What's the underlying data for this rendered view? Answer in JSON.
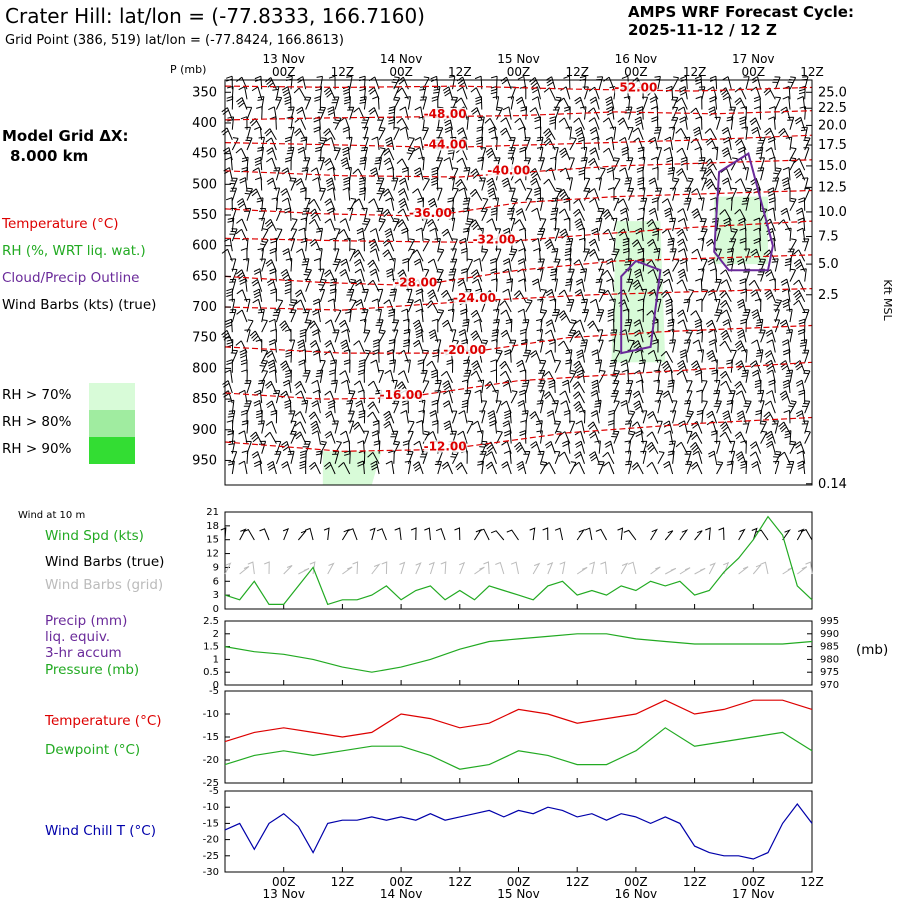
{
  "header": {
    "title": "Crater Hill:  lat/lon = (-77.8333, 166.7160)",
    "subtitle": "Grid Point (386, 519) lat/lon = (-77.8424, 166.8613)",
    "cycle_line1": "AMPS WRF Forecast Cycle:",
    "cycle_line2": "2025-11-12 / 12  Z"
  },
  "sidebar": {
    "model_grid_label": "Model Grid ΔX:",
    "model_grid_value": "8.000 km",
    "legend_temperature": "Temperature (°C)",
    "legend_rh": "RH (%, WRT liq. wat.)",
    "legend_cloud": "Cloud/Precip Outline",
    "legend_wind": "Wind Barbs (kts) (true)",
    "rh_levels": [
      {
        "label": "RH > 70%",
        "color": "#d8fbd8"
      },
      {
        "label": "RH > 80%",
        "color": "#a0eca0"
      },
      {
        "label": "RH > 90%",
        "color": "#33dd33"
      }
    ]
  },
  "colors": {
    "temperature": "#dd0000",
    "rh": "#22aa22",
    "cloud": "#6a2a9a",
    "wind": "#000000",
    "wind_grid": "#bbbbbb",
    "windchill": "#0000aa"
  },
  "time_axis": {
    "ticks": [
      "00Z",
      "12Z",
      "00Z",
      "12Z",
      "00Z",
      "12Z",
      "00Z",
      "12Z",
      "00Z",
      "12Z"
    ],
    "ticks_hours": [
      12,
      24,
      36,
      48,
      60,
      72,
      84,
      96,
      108,
      120
    ],
    "dates": [
      "13 Nov",
      "14 Nov",
      "15 Nov",
      "16 Nov",
      "17 Nov"
    ],
    "dates_hours": [
      12,
      36,
      60,
      84,
      108
    ],
    "xlim": [
      0,
      120
    ]
  },
  "chart_data": [
    {
      "type": "line",
      "name": "time-height cross-section",
      "ylabel": "P (mb)",
      "y2label": "Kft MSL",
      "ylim": [
        990,
        330
      ],
      "pressure_ticks": [
        350,
        400,
        450,
        500,
        550,
        600,
        650,
        700,
        750,
        800,
        850,
        900,
        950
      ],
      "height_ticks": [
        {
          "label": "25.0",
          "p": 350
        },
        {
          "label": "22.5",
          "p": 376
        },
        {
          "label": "20.0",
          "p": 404
        },
        {
          "label": "17.5",
          "p": 436
        },
        {
          "label": "15.0",
          "p": 470
        },
        {
          "label": "12.5",
          "p": 505
        },
        {
          "label": "10.0",
          "p": 545
        },
        {
          "label": "7.5",
          "p": 585
        },
        {
          "label": "5.0",
          "p": 630
        },
        {
          "label": "2.5",
          "p": 680
        },
        {
          "label": "0.14",
          "p": 988
        }
      ],
      "temperature_contours": [
        {
          "label": "-52.00",
          "label_hour": 84,
          "label_p": 347,
          "x": [
            0,
            24,
            48,
            72,
            96,
            120
          ],
          "y": [
            340,
            342,
            340,
            345,
            348,
            342
          ]
        },
        {
          "label": "-48.00",
          "label_hour": 45,
          "label_p": 390,
          "x": [
            0,
            20,
            40,
            60,
            80,
            100,
            120
          ],
          "y": [
            395,
            392,
            390,
            388,
            382,
            385,
            380
          ]
        },
        {
          "label": "-44.00",
          "label_hour": 45,
          "label_p": 440,
          "x": [
            0,
            24,
            45,
            70,
            96,
            120
          ],
          "y": [
            432,
            436,
            440,
            434,
            428,
            420
          ]
        },
        {
          "label": "-40.00",
          "label_hour": 58,
          "label_p": 482,
          "x": [
            0,
            24,
            48,
            58,
            80,
            100,
            120
          ],
          "y": [
            478,
            486,
            488,
            482,
            470,
            465,
            460
          ]
        },
        {
          "label": "-36.00",
          "label_hour": 42,
          "label_p": 552,
          "x": [
            0,
            20,
            42,
            60,
            80,
            100,
            120
          ],
          "y": [
            540,
            548,
            552,
            530,
            520,
            515,
            510
          ]
        },
        {
          "label": "-32.00",
          "label_hour": 55,
          "label_p": 595,
          "x": [
            0,
            24,
            55,
            75,
            96,
            120
          ],
          "y": [
            588,
            592,
            595,
            582,
            570,
            560
          ]
        },
        {
          "label": "-28.00",
          "label_hour": 39,
          "label_p": 665,
          "x": [
            0,
            20,
            39,
            60,
            80,
            100,
            120
          ],
          "y": [
            650,
            660,
            665,
            640,
            625,
            620,
            615
          ]
        },
        {
          "label": "-24.00",
          "label_hour": 51,
          "label_p": 690,
          "x": [
            0,
            24,
            51,
            75,
            96,
            120
          ],
          "y": [
            700,
            705,
            690,
            680,
            675,
            670
          ]
        },
        {
          "label": "-20.00",
          "label_hour": 49,
          "label_p": 775,
          "x": [
            0,
            24,
            49,
            70,
            90,
            120
          ],
          "y": [
            765,
            775,
            775,
            750,
            740,
            730
          ]
        },
        {
          "label": "-16.00",
          "label_hour": 36,
          "label_p": 848,
          "x": [
            0,
            20,
            36,
            60,
            80,
            100,
            120
          ],
          "y": [
            840,
            850,
            848,
            820,
            810,
            800,
            790
          ]
        },
        {
          "label": "-12.00",
          "label_hour": 45,
          "label_p": 932,
          "x": [
            0,
            24,
            45,
            70,
            96,
            120
          ],
          "y": [
            920,
            935,
            932,
            905,
            890,
            880
          ]
        }
      ],
      "rh_regions": [
        {
          "level": "RH > 70%",
          "x": [
            20,
            30,
            32,
            20
          ],
          "y": [
            990,
            990,
            935,
            935
          ]
        },
        {
          "level": "RH > 70%",
          "x": [
            79,
            90,
            89,
            80
          ],
          "y": [
            790,
            790,
            560,
            560
          ]
        },
        {
          "level": "RH > 70%",
          "x": [
            100,
            111,
            111,
            100
          ],
          "y": [
            630,
            630,
            520,
            520
          ]
        }
      ],
      "cloud_outlines": [
        {
          "x": [
            81,
            87,
            89,
            84,
            81
          ],
          "y": [
            775,
            765,
            640,
            625,
            650
          ]
        },
        {
          "x": [
            100,
            103,
            111,
            112,
            107,
            101
          ],
          "y": [
            610,
            640,
            640,
            600,
            450,
            480
          ]
        }
      ]
    },
    {
      "type": "line",
      "name": "wind at 10 m",
      "title": "Wind at 10 m",
      "ylim": [
        0,
        21
      ],
      "yticks": [
        0,
        3,
        6,
        9,
        12,
        15,
        18,
        21
      ],
      "legend": [
        "Wind Spd (kts)",
        "Wind Barbs (true)",
        "Wind Barbs (grid)"
      ],
      "series": [
        {
          "name": "Wind Spd (kts)",
          "x": [
            0,
            3,
            6,
            9,
            12,
            15,
            18,
            21,
            24,
            27,
            30,
            33,
            36,
            39,
            42,
            45,
            48,
            51,
            54,
            57,
            60,
            63,
            66,
            69,
            72,
            75,
            78,
            81,
            84,
            87,
            90,
            93,
            96,
            99,
            102,
            105,
            108,
            111,
            114,
            117,
            120
          ],
          "values": [
            3,
            2,
            6,
            1,
            1,
            5,
            9,
            1,
            2,
            2,
            3,
            5,
            2,
            4,
            5,
            2,
            4,
            2,
            5,
            4,
            3,
            2,
            5,
            6,
            3,
            4,
            3,
            5,
            4,
            6,
            5,
            6,
            3,
            4,
            8,
            11,
            15,
            20,
            16,
            5,
            2
          ]
        }
      ]
    },
    {
      "type": "line",
      "name": "precip and pressure",
      "legend": [
        "Precip (mm)",
        "liq. equiv.",
        "3-hr accum",
        "Pressure (mb)"
      ],
      "ylim": [
        0,
        2.5
      ],
      "yticks": [
        0,
        0.5,
        1.0,
        1.5,
        2.0,
        2.5
      ],
      "y2label": "(mb)",
      "y2lim": [
        970,
        995
      ],
      "y2ticks": [
        970,
        975,
        980,
        985,
        990,
        995
      ],
      "series": [
        {
          "name": "Pressure (mb)",
          "x": [
            0,
            6,
            12,
            18,
            24,
            30,
            36,
            42,
            48,
            54,
            60,
            66,
            72,
            78,
            84,
            90,
            96,
            102,
            108,
            114,
            120
          ],
          "values": [
            985,
            983,
            982,
            980,
            977,
            975,
            977,
            980,
            984,
            987,
            988,
            989,
            990,
            990,
            988,
            987,
            986,
            986,
            986,
            986,
            987
          ]
        }
      ]
    },
    {
      "type": "line",
      "name": "temperature and dewpoint",
      "ylim": [
        -25,
        -5
      ],
      "yticks": [
        -25,
        -20,
        -15,
        -10,
        -5
      ],
      "series": [
        {
          "name": "Temperature (°C)",
          "x": [
            0,
            6,
            12,
            18,
            24,
            30,
            36,
            42,
            48,
            54,
            60,
            66,
            72,
            78,
            84,
            90,
            96,
            102,
            108,
            114,
            120
          ],
          "values": [
            -16,
            -14,
            -13,
            -14,
            -15,
            -14,
            -10,
            -11,
            -13,
            -12,
            -9,
            -10,
            -12,
            -11,
            -10,
            -7,
            -10,
            -9,
            -7,
            -7,
            -9
          ]
        },
        {
          "name": "Dewpoint (°C)",
          "x": [
            0,
            6,
            12,
            18,
            24,
            30,
            36,
            42,
            48,
            54,
            60,
            66,
            72,
            78,
            84,
            90,
            96,
            102,
            108,
            114,
            120
          ],
          "values": [
            -21,
            -19,
            -18,
            -19,
            -18,
            -17,
            -17,
            -19,
            -22,
            -21,
            -18,
            -19,
            -21,
            -21,
            -18,
            -13,
            -17,
            -16,
            -15,
            -14,
            -18
          ]
        }
      ]
    },
    {
      "type": "line",
      "name": "wind chill",
      "ylim": [
        -30,
        -5
      ],
      "yticks": [
        -30,
        -25,
        -20,
        -15,
        -10,
        -5
      ],
      "series": [
        {
          "name": "Wind Chill T (°C)",
          "x": [
            0,
            3,
            6,
            9,
            12,
            15,
            18,
            21,
            24,
            27,
            30,
            33,
            36,
            39,
            42,
            45,
            48,
            51,
            54,
            57,
            60,
            63,
            66,
            69,
            72,
            75,
            78,
            81,
            84,
            87,
            90,
            93,
            96,
            99,
            102,
            105,
            108,
            111,
            114,
            117,
            120
          ],
          "values": [
            -17,
            -15,
            -23,
            -15,
            -12,
            -16,
            -24,
            -15,
            -14,
            -14,
            -13,
            -14,
            -13,
            -14,
            -12,
            -14,
            -13,
            -12,
            -11,
            -13,
            -11,
            -12,
            -10,
            -11,
            -13,
            -12,
            -14,
            -12,
            -13,
            -15,
            -13,
            -15,
            -22,
            -24,
            -25,
            -25,
            -26,
            -24,
            -15,
            -9,
            -15
          ]
        }
      ]
    }
  ]
}
